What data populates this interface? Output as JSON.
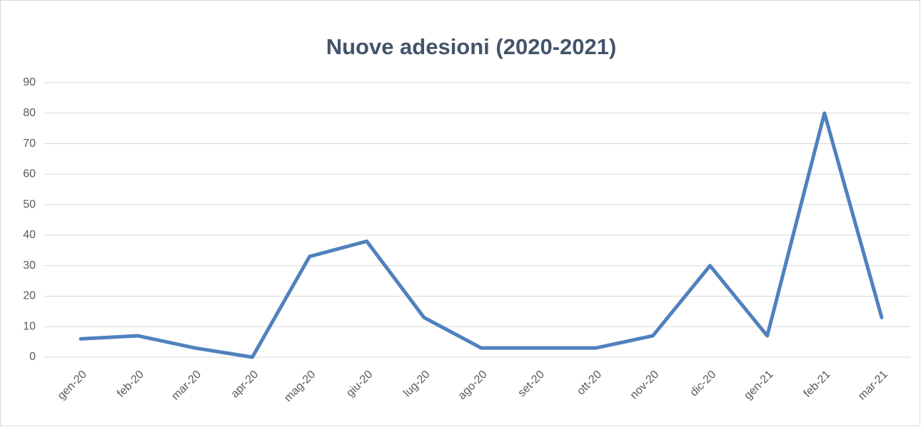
{
  "chart_data": {
    "type": "line",
    "title": "Nuove adesioni (2020-2021)",
    "categories": [
      "gen-20",
      "feb-20",
      "mar-20",
      "apr-20",
      "mag-20",
      "giu-20",
      "lug-20",
      "ago-20",
      "set-20",
      "ott-20",
      "nov-20",
      "dic-20",
      "gen-21",
      "feb-21",
      "mar-21"
    ],
    "values": [
      6,
      7,
      3,
      0,
      33,
      38,
      13,
      3,
      3,
      3,
      7,
      30,
      7,
      80,
      13
    ],
    "color": "#4f81bd",
    "ylim": [
      0,
      90
    ],
    "yticks": [
      0,
      10,
      20,
      30,
      40,
      50,
      60,
      70,
      80,
      90
    ],
    "grid": true
  }
}
